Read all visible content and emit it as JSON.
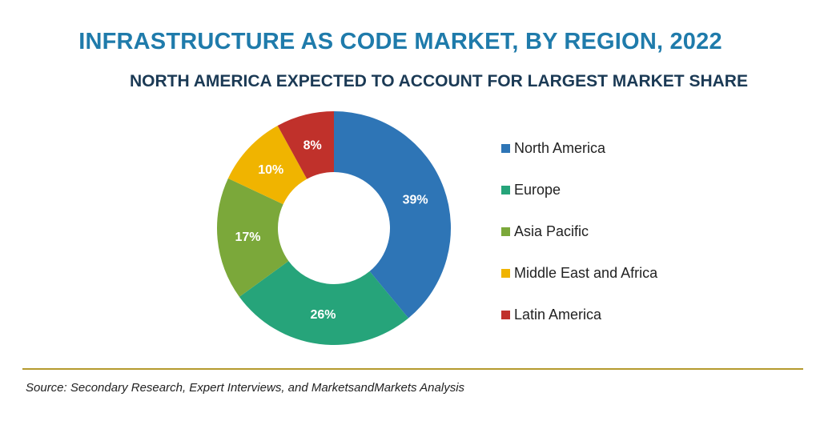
{
  "chart_data": {
    "type": "pie",
    "title": "INFRASTRUCTURE AS CODE MARKET, BY REGION, 2022",
    "subtitle": "NORTH AMERICA EXPECTED TO ACCOUNT FOR LARGEST MARKET SHARE",
    "donut": true,
    "legend_position": "right",
    "slices": [
      {
        "label": "North America",
        "value": 39,
        "display": "39%",
        "color": "#2e75b6"
      },
      {
        "label": "Europe",
        "value": 26,
        "display": "26%",
        "color": "#26a47a"
      },
      {
        "label": "Asia Pacific",
        "value": 17,
        "display": "17%",
        "color": "#7ba83a"
      },
      {
        "label": "Middle East and Africa",
        "value": 10,
        "display": "10%",
        "color": "#f0b400"
      },
      {
        "label": "Latin America",
        "value": 8,
        "display": "8%",
        "color": "#c0312b"
      }
    ]
  },
  "source": "Source: Secondary Research, Expert Interviews, and MarketsandMarkets Analysis",
  "colors": {
    "title": "#1f7bab",
    "subtitle": "#1b3a55",
    "rule": "#b59a2e"
  }
}
